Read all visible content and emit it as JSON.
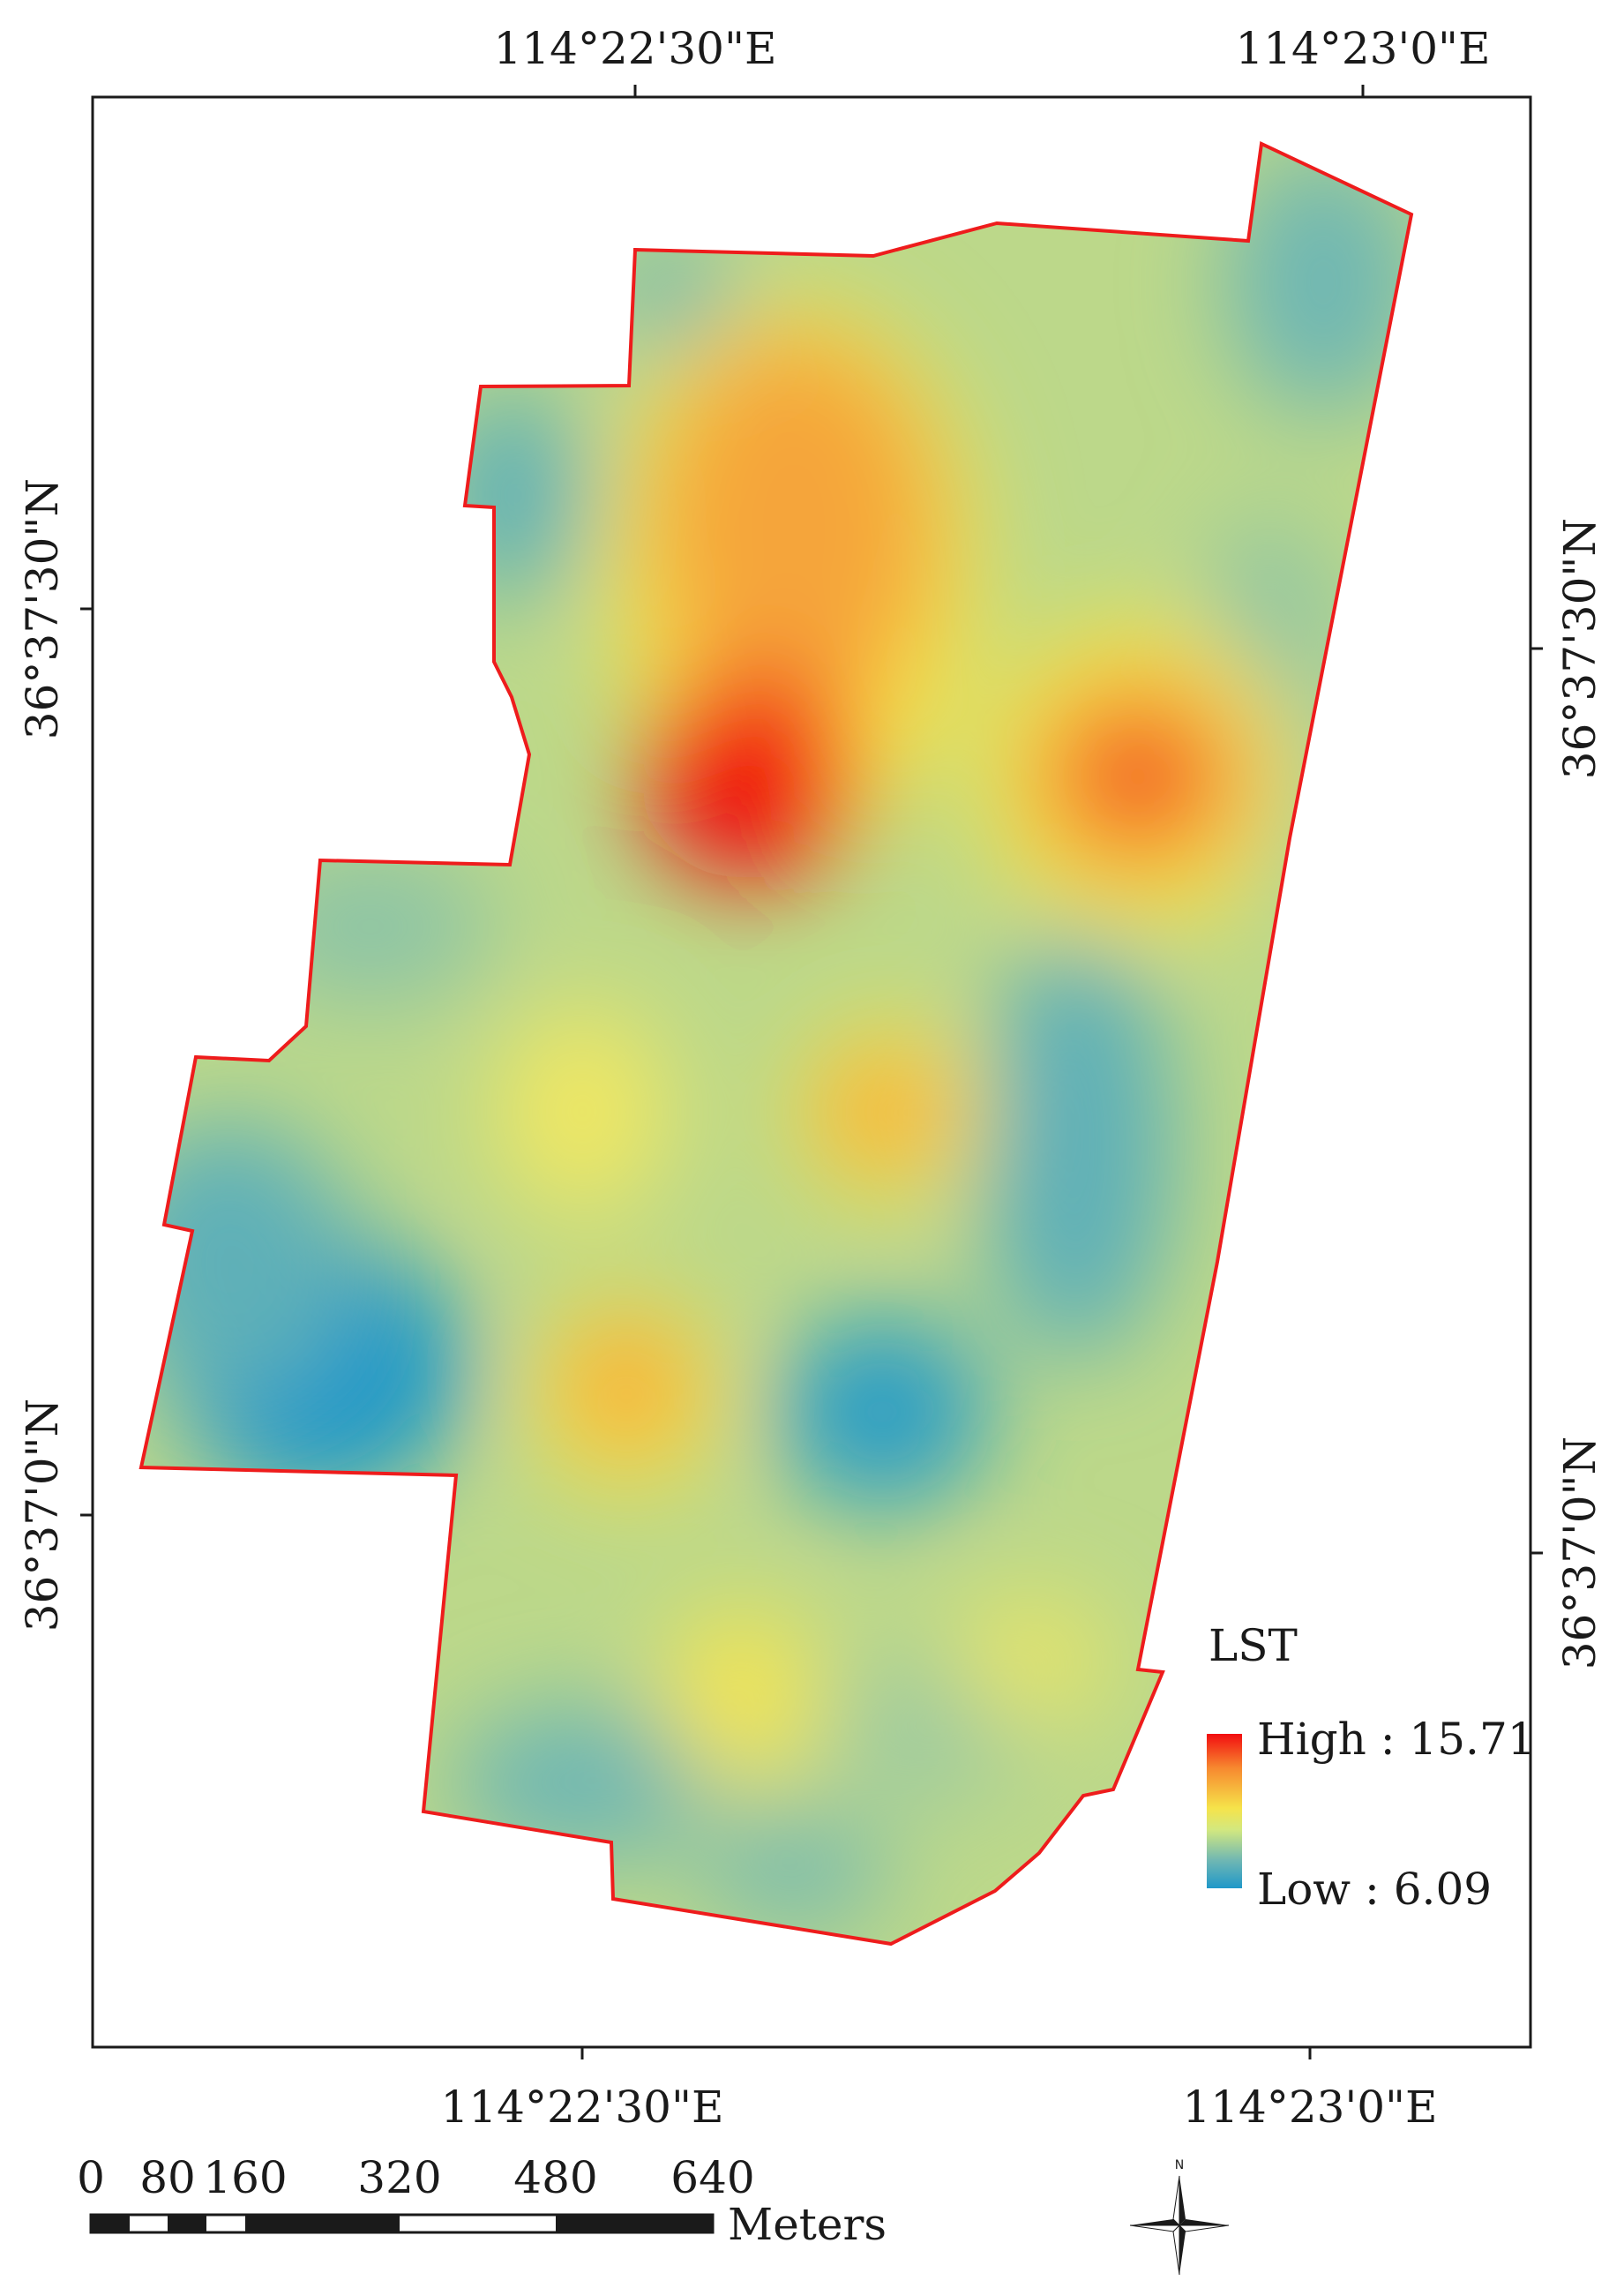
{
  "map": {
    "top_lon_labels": [
      "114°22'30\"E",
      "114°23'0\"E"
    ],
    "bottom_lon_labels": [
      "114°22'30\"E",
      "114°23'0\"E"
    ],
    "left_lat_labels": [
      "36°37'30\"N",
      "36°37'0\"N"
    ],
    "right_lat_labels": [
      "36°37'30\"N",
      "36°37'0\"N"
    ]
  },
  "legend": {
    "title": "LST",
    "high_label": "High : 15.71",
    "low_label": "Low : 6.09",
    "high_value": 15.71,
    "low_value": 6.09,
    "colors": [
      "#f20d10",
      "#f7882f",
      "#f6e34a",
      "#d3e87f",
      "#6fb7b3",
      "#1f98c9"
    ]
  },
  "scale_bar": {
    "tick_labels": [
      "0",
      "80",
      "160",
      "320",
      "480",
      "640"
    ],
    "unit": "Meters"
  },
  "north_arrow": {
    "label": "N",
    "icon": "compass-star-icon"
  }
}
